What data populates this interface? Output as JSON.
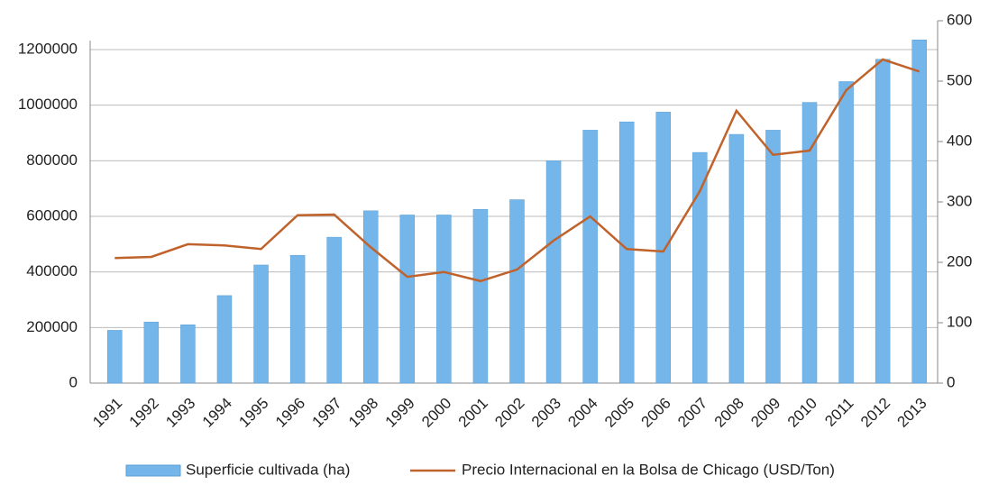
{
  "chart_data": {
    "type": "bar_line",
    "categories": [
      "1991",
      "1992",
      "1993",
      "1994",
      "1995",
      "1996",
      "1997",
      "1998",
      "1999",
      "2000",
      "2001",
      "2002",
      "2003",
      "2004",
      "2005",
      "2006",
      "2007",
      "2008",
      "2009",
      "2010",
      "2011",
      "2012",
      "2013"
    ],
    "series": [
      {
        "name": "Superficie cultivada (ha)",
        "type": "bar",
        "color": "#74b6ea",
        "values": [
          190000,
          220000,
          210000,
          315000,
          425000,
          460000,
          525000,
          620000,
          605000,
          605000,
          625000,
          660000,
          800000,
          910000,
          940000,
          975000,
          830000,
          895000,
          910000,
          1010000,
          1085000,
          1165000,
          1235000
        ]
      },
      {
        "name": "Precio Internacional en la Bolsa de Chicago (USD/Ton)",
        "type": "line",
        "axis": "y2",
        "color": "#c0622b",
        "values": [
          207,
          209,
          230,
          228,
          222,
          278,
          279,
          225,
          176,
          184,
          169,
          188,
          236,
          276,
          222,
          218,
          318,
          451,
          378,
          385,
          485,
          536,
          516
        ]
      }
    ],
    "ylim": [
      0,
      1200000
    ],
    "yticks": [
      0,
      200000,
      400000,
      600000,
      800000,
      1000000,
      1200000
    ],
    "y2lim": [
      0,
      600
    ],
    "y2ticks": [
      0,
      100,
      200,
      300,
      400,
      500,
      600
    ],
    "grid": true,
    "legend": "bottom"
  }
}
